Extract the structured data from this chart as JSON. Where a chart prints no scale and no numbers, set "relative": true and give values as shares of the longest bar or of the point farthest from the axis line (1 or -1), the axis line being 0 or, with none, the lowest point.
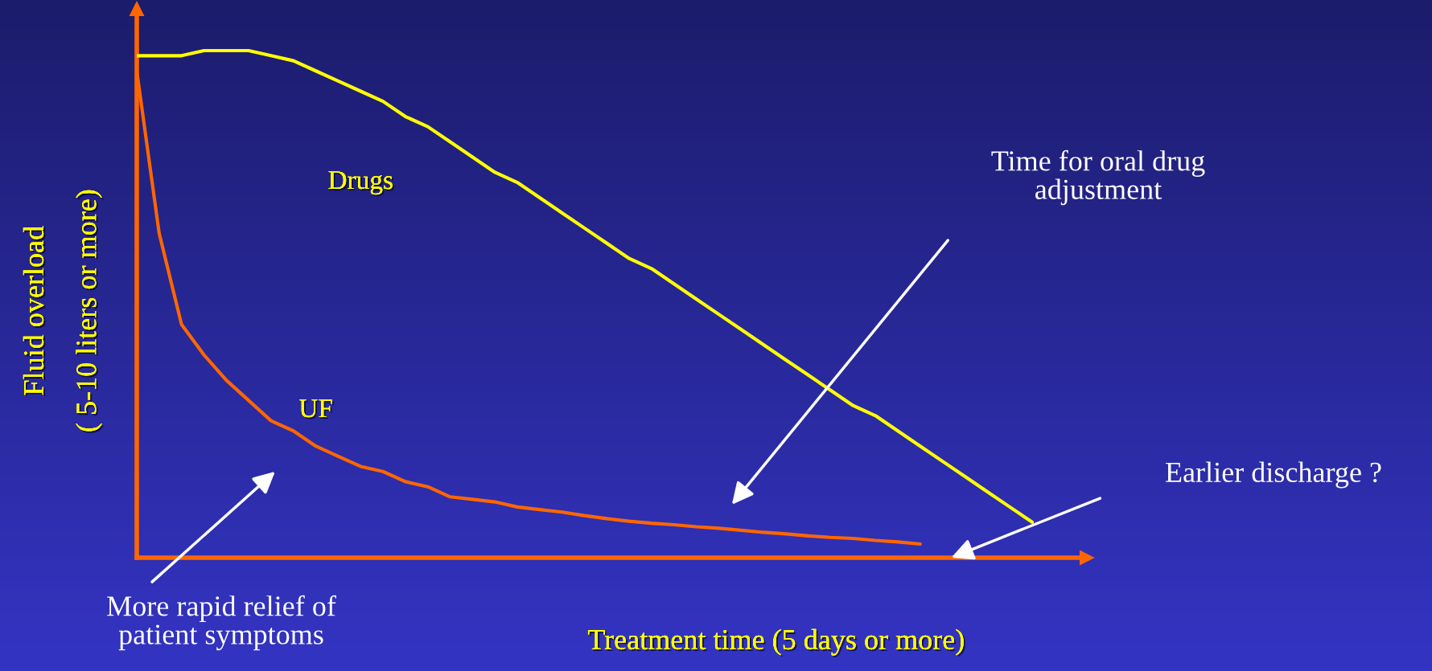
{
  "chart_data": {
    "type": "line",
    "relative": true,
    "xlabel": "Treatment time (5 days or more)",
    "ylabel": "Fluid overload\n( 5-10 liters or more)",
    "categories": [
      null,
      null,
      null,
      null,
      null,
      null,
      null,
      null,
      null,
      null,
      null,
      null,
      null,
      null,
      null,
      null,
      null,
      null,
      null,
      null,
      null,
      null,
      null,
      null,
      null,
      null,
      null,
      null,
      null,
      null,
      null,
      null,
      null,
      null,
      null,
      null,
      null,
      null,
      null,
      null,
      null
    ],
    "series": [
      {
        "name": "Drugs",
        "color": "#ffff00",
        "values": [
          0.99,
          0.99,
          0.99,
          1.0,
          1.0,
          1.0,
          0.99,
          0.98,
          0.96,
          0.94,
          0.92,
          0.9,
          0.87,
          0.85,
          0.82,
          0.79,
          0.76,
          0.74,
          0.71,
          0.68,
          0.65,
          0.62,
          0.59,
          0.57,
          0.54,
          0.51,
          0.48,
          0.45,
          0.42,
          0.39,
          0.36,
          0.33,
          0.3,
          0.28,
          0.25,
          0.22,
          0.19,
          0.16,
          0.13,
          0.1,
          0.07
        ]
      },
      {
        "name": "UF",
        "color": "#ff6600",
        "values": [
          0.96,
          0.64,
          0.46,
          0.4,
          0.35,
          0.31,
          0.27,
          0.25,
          0.22,
          0.2,
          0.18,
          0.17,
          0.15,
          0.14,
          0.12,
          0.115,
          0.11,
          0.1,
          0.095,
          0.09,
          0.083,
          0.077,
          0.072,
          0.068,
          0.065,
          0.061,
          0.058,
          0.054,
          0.05,
          0.047,
          0.043,
          0.04,
          0.038,
          0.034,
          0.031,
          0.027,
          null,
          null,
          null,
          null,
          null
        ]
      }
    ],
    "annotations": [
      "Time for oral drug\nadjustment",
      "Earlier discharge ?",
      "More rapid relief of\npatient symptoms"
    ],
    "legend": false,
    "grid": false,
    "marker": "none",
    "line_style": "solid"
  }
}
